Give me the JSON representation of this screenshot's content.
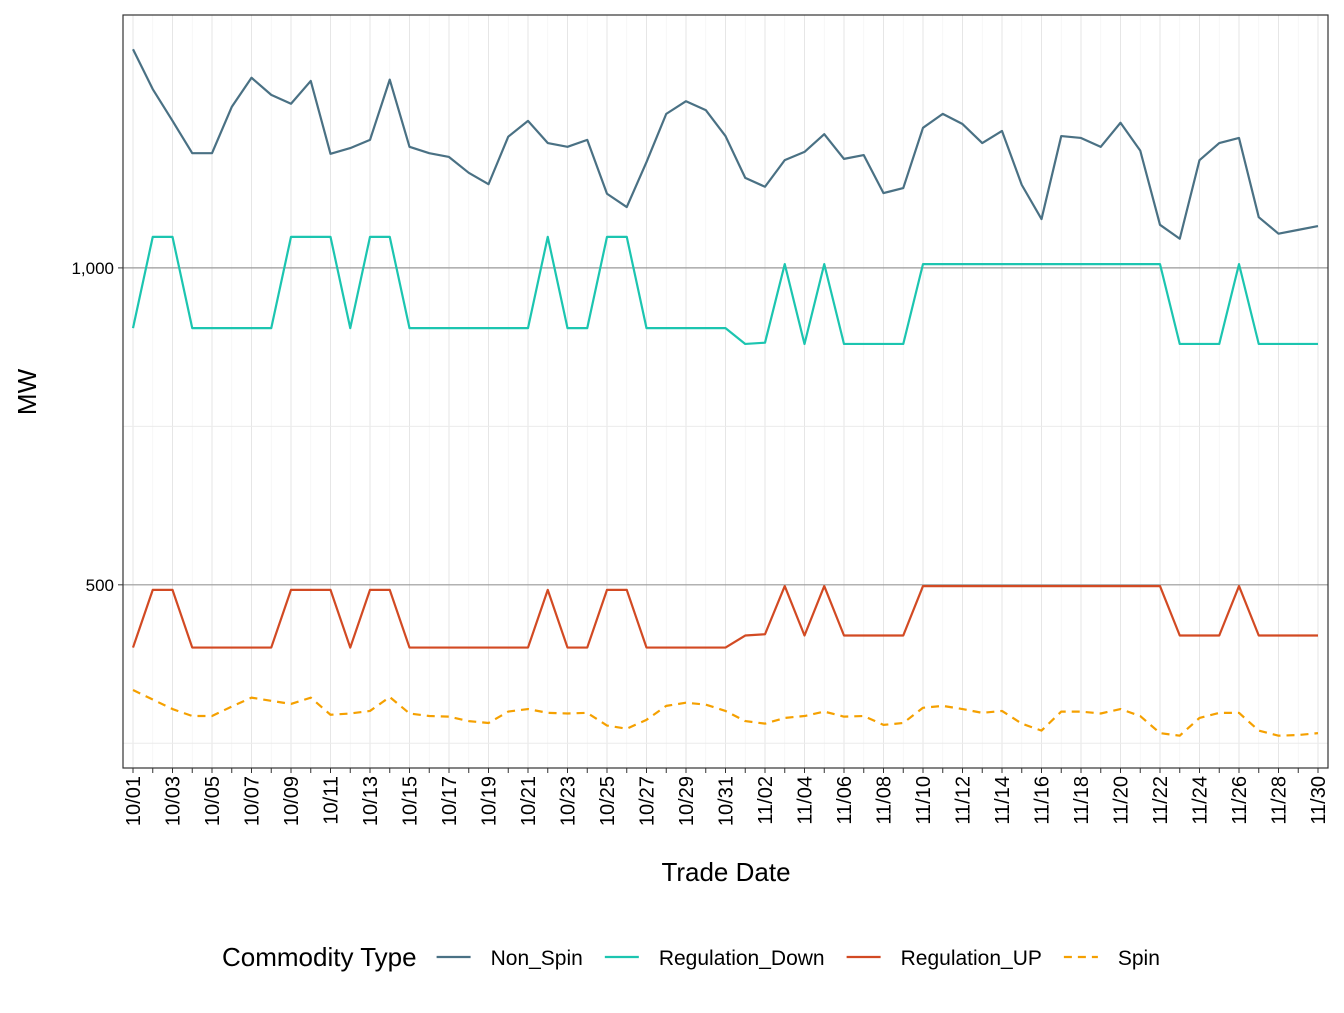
{
  "chart_data": {
    "type": "line",
    "x_label": "Trade Date",
    "y_label": "MW",
    "categories": [
      "10/01",
      null,
      "10/03",
      null,
      "10/05",
      null,
      "10/07",
      null,
      "10/09",
      null,
      "10/11",
      null,
      "10/13",
      null,
      "10/15",
      null,
      "10/17",
      null,
      "10/19",
      null,
      "10/21",
      null,
      "10/23",
      null,
      "10/25",
      null,
      "10/27",
      null,
      "10/29",
      null,
      "10/31",
      null,
      "11/02",
      null,
      "11/04",
      null,
      "11/06",
      null,
      "11/08",
      null,
      "11/10",
      null,
      "11/12",
      null,
      "11/14",
      null,
      "11/16",
      null,
      "11/18",
      null,
      "11/20",
      null,
      "11/22",
      null,
      "11/24",
      null,
      "11/26",
      null,
      "11/28",
      null,
      "11/30"
    ],
    "series": [
      {
        "name": "Non_Spin",
        "color": "#4a7184",
        "linestyle": "solid",
        "values": [
          1345,
          1282,
          1232,
          1181,
          1181,
          1254,
          1300,
          1273,
          1259,
          1295,
          1180,
          1189,
          1202,
          1297,
          1191,
          1181,
          1175,
          1150,
          1132,
          1207,
          1232,
          1197,
          1191,
          1202,
          1117,
          1096,
          1167,
          1243,
          1263,
          1249,
          1208,
          1142,
          1128,
          1170,
          1183,
          1211,
          1172,
          1178,
          1118,
          1126,
          1221,
          1243,
          1227,
          1197,
          1216,
          1131,
          1077,
          1208,
          1205,
          1191,
          1229,
          1185,
          1068,
          1046,
          1170,
          1197,
          1205,
          1080,
          1054,
          1060,
          1066
        ]
      },
      {
        "name": "Regulation_Down",
        "color": "#1cc5b0",
        "linestyle": "solid",
        "values": [
          905,
          1049,
          1049,
          905,
          905,
          905,
          905,
          905,
          1049,
          1049,
          1049,
          905,
          1049,
          1049,
          905,
          905,
          905,
          905,
          905,
          905,
          905,
          1049,
          905,
          905,
          1049,
          1049,
          905,
          905,
          905,
          905,
          905,
          880,
          882,
          1006,
          880,
          1006,
          880,
          880,
          880,
          880,
          1006,
          1006,
          1006,
          1006,
          1006,
          1006,
          1006,
          1006,
          1006,
          1006,
          1006,
          1006,
          1006,
          880,
          880,
          880,
          1006,
          880,
          880,
          880,
          880
        ]
      },
      {
        "name": "Regulation_UP",
        "color": "#d24a23",
        "linestyle": "solid",
        "values": [
          401,
          492,
          492,
          401,
          401,
          401,
          401,
          401,
          492,
          492,
          492,
          401,
          492,
          492,
          401,
          401,
          401,
          401,
          401,
          401,
          401,
          492,
          401,
          401,
          492,
          492,
          401,
          401,
          401,
          401,
          401,
          420,
          422,
          498,
          420,
          498,
          420,
          420,
          420,
          420,
          498,
          498,
          498,
          498,
          498,
          498,
          498,
          498,
          498,
          498,
          498,
          498,
          498,
          420,
          420,
          420,
          498,
          420,
          420,
          420,
          420
        ]
      },
      {
        "name": "Spin",
        "color": "#f5a000",
        "linestyle": "dashed",
        "values": [
          334,
          319,
          304,
          293,
          293,
          308,
          322,
          317,
          312,
          322,
          295,
          297,
          301,
          323,
          297,
          293,
          292,
          285,
          282,
          300,
          304,
          298,
          297,
          298,
          278,
          273,
          287,
          309,
          314,
          311,
          301,
          285,
          281,
          290,
          293,
          300,
          292,
          293,
          279,
          282,
          306,
          309,
          304,
          298,
          301,
          281,
          270,
          300,
          300,
          297,
          304,
          293,
          266,
          262,
          290,
          298,
          298,
          270,
          262,
          263,
          266
        ]
      }
    ],
    "ylim": [
      211,
      1399
    ],
    "yticks": [
      500,
      {
        "value": 1000,
        "label": "1,000"
      }
    ],
    "y_minor_ticks": [
      250,
      750
    ],
    "grid": true,
    "legend_title": "Commodity Type",
    "legend_position": "bottom"
  }
}
